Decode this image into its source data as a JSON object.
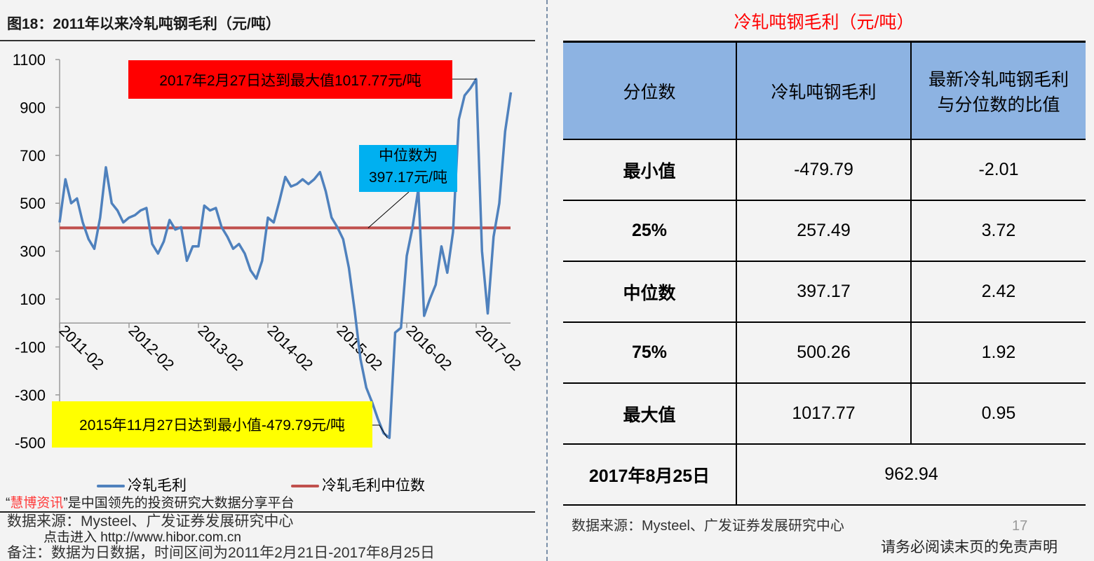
{
  "left": {
    "figure_title": "图18：2011年以来冷轧吨钢毛利（元/吨）",
    "annotation_max": "2017年2月27日达到最大值1017.77元/吨",
    "annotation_median_line1": "中位数为",
    "annotation_median_line2": "397.17元/吨",
    "annotation_min": "2015年11月27日达到最小值-479.79元/吨",
    "promo_quote_open": "“",
    "promo_brand": "慧博资讯",
    "promo_rest": "”是中国领先的投资研究大数据分享平台",
    "source": "数据来源：Mysteel、广发证券发展研究中心",
    "link_text": "点击进入 http://www.hibor.com.cn",
    "note": "备注：数据为日数据，时间区间为2011年2月21日-2017年8月25日"
  },
  "chart_data": {
    "type": "line",
    "title": "2011年以来冷轧吨钢毛利（元/吨）",
    "xlabel": "",
    "ylabel": "",
    "ylim": [
      -500,
      1100
    ],
    "y_ticks": [
      "1100",
      "900",
      "700",
      "500",
      "300",
      "100",
      "-100",
      "-300",
      "-500"
    ],
    "x_ticks": [
      "2011-02",
      "2012-02",
      "2013-02",
      "2014-02",
      "2015-02",
      "2016-02",
      "2017-02"
    ],
    "grid": false,
    "legend_position": "bottom",
    "colors": {
      "series": "#4f81bd",
      "median": "#c0504d"
    },
    "series": [
      {
        "name": "冷轧毛利",
        "x": [
          "2011-02",
          "2011-03",
          "2011-04",
          "2011-05",
          "2011-06",
          "2011-07",
          "2011-08",
          "2011-09",
          "2011-10",
          "2011-11",
          "2011-12",
          "2012-01",
          "2012-02",
          "2012-03",
          "2012-04",
          "2012-05",
          "2012-06",
          "2012-07",
          "2012-08",
          "2012-09",
          "2012-10",
          "2012-11",
          "2012-12",
          "2013-01",
          "2013-02",
          "2013-03",
          "2013-04",
          "2013-05",
          "2013-06",
          "2013-07",
          "2013-08",
          "2013-09",
          "2013-10",
          "2013-11",
          "2013-12",
          "2014-01",
          "2014-02",
          "2014-03",
          "2014-04",
          "2014-05",
          "2014-06",
          "2014-07",
          "2014-08",
          "2014-09",
          "2014-10",
          "2014-11",
          "2014-12",
          "2015-01",
          "2015-02",
          "2015-03",
          "2015-04",
          "2015-05",
          "2015-06",
          "2015-07",
          "2015-08",
          "2015-09",
          "2015-10",
          "2015-11",
          "2015-12",
          "2016-01",
          "2016-02",
          "2016-03",
          "2016-04",
          "2016-05",
          "2016-06",
          "2016-07",
          "2016-08",
          "2016-09",
          "2016-10",
          "2016-11",
          "2016-12",
          "2017-01",
          "2017-02",
          "2017-03",
          "2017-04",
          "2017-05",
          "2017-06",
          "2017-07",
          "2017-08"
        ],
        "values": [
          420,
          600,
          500,
          520,
          420,
          350,
          310,
          440,
          650,
          500,
          470,
          420,
          440,
          450,
          470,
          480,
          330,
          290,
          340,
          430,
          390,
          400,
          260,
          320,
          320,
          490,
          470,
          480,
          400,
          360,
          310,
          330,
          290,
          220,
          185,
          260,
          440,
          420,
          510,
          610,
          570,
          580,
          600,
          580,
          600,
          630,
          550,
          440,
          400,
          350,
          230,
          50,
          -150,
          -270,
          -330,
          -400,
          -460,
          -479.79,
          -40,
          -20,
          280,
          400,
          560,
          30,
          100,
          160,
          320,
          210,
          380,
          850,
          950,
          980,
          1017.77,
          300,
          40,
          360,
          500,
          800,
          962.94
        ]
      },
      {
        "name": "冷轧毛利中位数",
        "value": 397.17
      }
    ]
  },
  "table": {
    "title": "冷轧吨钢毛利（元/吨）",
    "headers": [
      "分位数",
      "冷轧吨钢毛利",
      "最新冷轧吨钢毛利",
      "与分位数的比值"
    ],
    "rows": [
      {
        "label": "最小值",
        "value": "-479.79",
        "ratio": "-2.01"
      },
      {
        "label": "25%",
        "value": "257.49",
        "ratio": "3.72"
      },
      {
        "label": "中位数",
        "value": "397.17",
        "ratio": "2.42"
      },
      {
        "label": "75%",
        "value": "500.26",
        "ratio": "1.92"
      },
      {
        "label": "最大值",
        "value": "1017.77",
        "ratio": "0.95"
      }
    ],
    "latest_label": "2017年8月25日",
    "latest_value": "962.94",
    "source": "数据来源：Mysteel、广发证券发展研究中心"
  },
  "page_number": "17",
  "disclaimer": "请务必阅读末页的免责声明"
}
